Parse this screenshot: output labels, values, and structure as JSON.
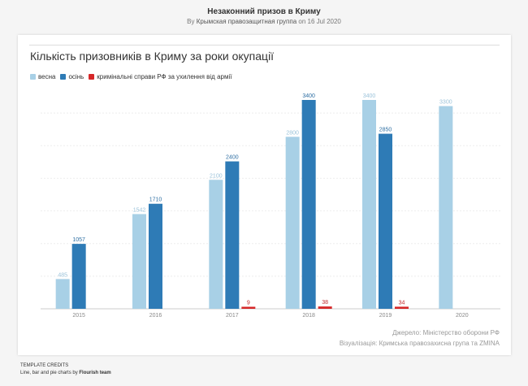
{
  "header": {
    "title": "Незаконний призов в Криму",
    "by_prefix": "By",
    "author": "Крымская правозащитная группа",
    "date_text": "on 16 Jul 2020"
  },
  "colors": {
    "spring": "#a8d0e6",
    "autumn": "#2e7bb6",
    "cases": "#d62728"
  },
  "chart_data": {
    "type": "bar",
    "title": "Кількість призовників в Криму за роки окупації",
    "categories": [
      "2015",
      "2016",
      "2017",
      "2018",
      "2019",
      "2020"
    ],
    "series": [
      {
        "name": "весна",
        "values": [
          485,
          1542,
          2100,
          2800,
          3400,
          3300
        ]
      },
      {
        "name": "осінь",
        "values": [
          1057,
          1710,
          2400,
          3400,
          2850,
          null
        ]
      },
      {
        "name": "кримінальні справи РФ за ухилення від армії",
        "values": [
          null,
          null,
          9,
          38,
          34,
          null
        ]
      }
    ],
    "ylim": [
      0,
      3400
    ],
    "grid": true,
    "legend_position": "top-left"
  },
  "footer": {
    "source": "Джерело: Міністерство оборони РФ",
    "visualization": "Візуалізація: Кримська правозахисна група та ZMINA"
  },
  "credits": {
    "label": "TEMPLATE CREDITS",
    "text": "Line, bar and pie charts by",
    "brand": "Flourish team"
  }
}
